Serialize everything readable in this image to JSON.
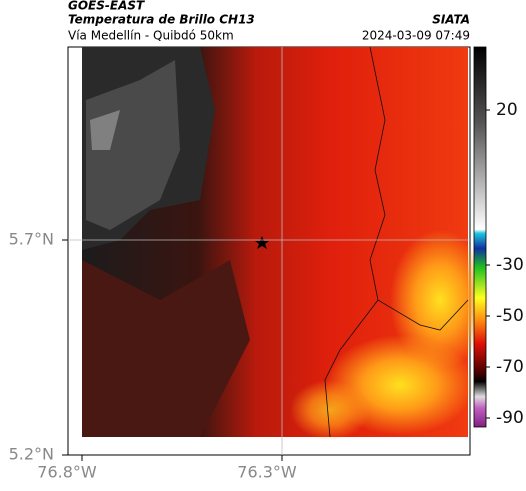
{
  "header": {
    "title": "GOES-EAST",
    "subtitle": "Temperatura de Brillo CH13",
    "source": "SIATA",
    "route": "Vía Medellín - Quibdó 50km",
    "timestamp": "2024-03-09 07:49"
  },
  "axes": {
    "lat_ticks": [
      {
        "value": 5.7,
        "label": "5.7°N"
      },
      {
        "value": 5.2,
        "label": "5.2°N"
      }
    ],
    "lon_ticks": [
      {
        "value": -76.8,
        "label": "76.8°W"
      },
      {
        "value": -76.3,
        "label": "76.3°W"
      }
    ]
  },
  "colorbar": {
    "ticks": [
      20,
      -30,
      -50,
      -70,
      -90
    ]
  }
}
